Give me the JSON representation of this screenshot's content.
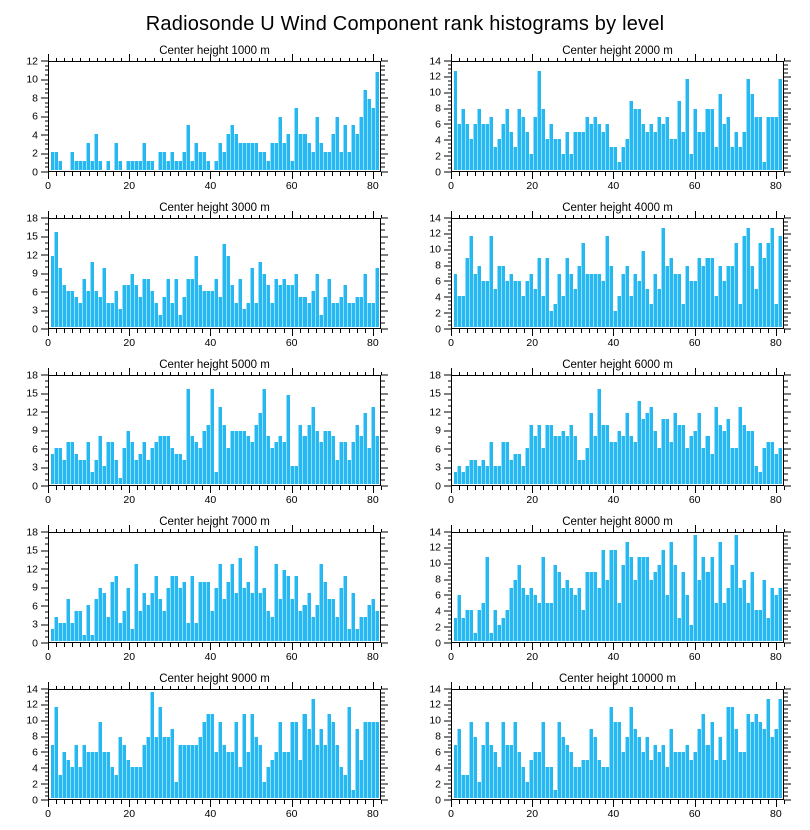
{
  "page": {
    "title": "Radiosonde U Wind Component rank histograms by level"
  },
  "colors": {
    "bar_fill": "#27b8f2",
    "bar_edge": "#92dffb",
    "axis": "#000000",
    "background": "#ffffff"
  },
  "chart_data": [
    {
      "type": "bar",
      "title": "Center height 1000 m",
      "xlabel": "",
      "ylabel": "",
      "xlim": [
        0,
        82
      ],
      "xticks": [
        0,
        20,
        40,
        60,
        80
      ],
      "ylim": [
        0,
        12
      ],
      "yticks": [
        0,
        2,
        4,
        6,
        8,
        10,
        12
      ],
      "grid": false,
      "legend": "none",
      "values": [
        2,
        2,
        1,
        0,
        0,
        2,
        1,
        1,
        1,
        3,
        1,
        4,
        1,
        0,
        1,
        0,
        3,
        1,
        0,
        1,
        1,
        1,
        1,
        3,
        1,
        1,
        0,
        2,
        2,
        1,
        2,
        1,
        1,
        2,
        5,
        1,
        3,
        2,
        2,
        1,
        0,
        1,
        3,
        2,
        4,
        5,
        4,
        3,
        3,
        3,
        3,
        3,
        2,
        2,
        1,
        3,
        3,
        6,
        3,
        4,
        1,
        7,
        4,
        4,
        3,
        2,
        6,
        3,
        2,
        2,
        4,
        6,
        2,
        5,
        2,
        5,
        4,
        6,
        9,
        8,
        7,
        11
      ]
    },
    {
      "type": "bar",
      "title": "Center height 2000 m",
      "xlabel": "",
      "ylabel": "",
      "xlim": [
        0,
        82
      ],
      "xticks": [
        0,
        20,
        40,
        60,
        80
      ],
      "ylim": [
        0,
        14
      ],
      "yticks": [
        0,
        2,
        4,
        6,
        8,
        10,
        12,
        14
      ],
      "grid": false,
      "legend": "none",
      "values": [
        13,
        6,
        8,
        6,
        4,
        6,
        8,
        6,
        6,
        7,
        3,
        4,
        6,
        8,
        5,
        3,
        8,
        7,
        5,
        2,
        7,
        13,
        8,
        4,
        6,
        4,
        4,
        2,
        5,
        2,
        5,
        5,
        5,
        7,
        6,
        7,
        6,
        5,
        6,
        3,
        3,
        1,
        3,
        4,
        9,
        8,
        8,
        6,
        5,
        6,
        5,
        7,
        6,
        7,
        4,
        4,
        9,
        5,
        12,
        2,
        8,
        5,
        5,
        8,
        8,
        3,
        10,
        6,
        7,
        3,
        5,
        3,
        5,
        12,
        10,
        7,
        7,
        1,
        7,
        7,
        7,
        12
      ]
    },
    {
      "type": "bar",
      "title": "Center height 3000 m",
      "xlabel": "",
      "ylabel": "",
      "xlim": [
        0,
        82
      ],
      "xticks": [
        0,
        20,
        40,
        60,
        80
      ],
      "ylim": [
        0,
        18
      ],
      "yticks": [
        0,
        3,
        6,
        9,
        12,
        15,
        18
      ],
      "grid": false,
      "legend": "none",
      "values": [
        12,
        16,
        10,
        7,
        6,
        6,
        5,
        4,
        8,
        6,
        11,
        6,
        5,
        10,
        4,
        4,
        6,
        3,
        7,
        7,
        9,
        7,
        5,
        8,
        8,
        6,
        4,
        2,
        5,
        8,
        4,
        8,
        2,
        5,
        8,
        8,
        12,
        7,
        6,
        6,
        6,
        8,
        5,
        14,
        12,
        7,
        4,
        8,
        3,
        4,
        10,
        4,
        11,
        9,
        7,
        4,
        8,
        7,
        8,
        7,
        7,
        9,
        5,
        5,
        4,
        6,
        9,
        2,
        5,
        8,
        4,
        4,
        5,
        7,
        4,
        4,
        5,
        5,
        9,
        4,
        4,
        10
      ]
    },
    {
      "type": "bar",
      "title": "Center height 4000 m",
      "xlabel": "",
      "ylabel": "",
      "xlim": [
        0,
        82
      ],
      "xticks": [
        0,
        20,
        40,
        60,
        80
      ],
      "ylim": [
        0,
        14
      ],
      "yticks": [
        0,
        2,
        4,
        6,
        8,
        10,
        12,
        14
      ],
      "grid": false,
      "legend": "none",
      "values": [
        7,
        4,
        4,
        9,
        12,
        7,
        8,
        6,
        6,
        12,
        5,
        8,
        8,
        6,
        7,
        6,
        6,
        4,
        6,
        7,
        5,
        9,
        4,
        9,
        2,
        3,
        7,
        4,
        9,
        7,
        5,
        8,
        11,
        7,
        7,
        7,
        7,
        6,
        12,
        8,
        2,
        4,
        7,
        8,
        4,
        7,
        6,
        10,
        5,
        3,
        7,
        5,
        13,
        8,
        9,
        7,
        7,
        3,
        8,
        6,
        6,
        9,
        8,
        9,
        9,
        4,
        8,
        6,
        8,
        8,
        11,
        3,
        12,
        13,
        8,
        5,
        11,
        9,
        11,
        13,
        3,
        12
      ]
    },
    {
      "type": "bar",
      "title": "Center height 5000 m",
      "xlabel": "",
      "ylabel": "",
      "xlim": [
        0,
        82
      ],
      "xticks": [
        0,
        20,
        40,
        60,
        80
      ],
      "ylim": [
        0,
        18
      ],
      "yticks": [
        0,
        3,
        6,
        9,
        12,
        15,
        18
      ],
      "grid": false,
      "legend": "none",
      "values": [
        5,
        6,
        6,
        4,
        7,
        7,
        5,
        4,
        4,
        7,
        2,
        4,
        8,
        3,
        7,
        7,
        4,
        1,
        6,
        9,
        7,
        4,
        5,
        7,
        4,
        6,
        7,
        8,
        8,
        8,
        6,
        5,
        5,
        4,
        16,
        8,
        7,
        6,
        9,
        10,
        16,
        2,
        13,
        10,
        6,
        9,
        9,
        9,
        9,
        8,
        7,
        10,
        12,
        16,
        8,
        6,
        7,
        8,
        7,
        15,
        3,
        3,
        10,
        8,
        10,
        13,
        9,
        7,
        9,
        9,
        8,
        4,
        7,
        7,
        4,
        7,
        10,
        8,
        12,
        6,
        13,
        8
      ]
    },
    {
      "type": "bar",
      "title": "Center height 6000 m",
      "xlabel": "",
      "ylabel": "",
      "xlim": [
        0,
        82
      ],
      "xticks": [
        0,
        20,
        40,
        60,
        80
      ],
      "ylim": [
        0,
        18
      ],
      "yticks": [
        0,
        3,
        6,
        9,
        12,
        15,
        18
      ],
      "grid": false,
      "legend": "none",
      "values": [
        2,
        3,
        2,
        3,
        4,
        4,
        3,
        4,
        3,
        7,
        3,
        3,
        7,
        7,
        4,
        5,
        5,
        3,
        6,
        10,
        8,
        10,
        6,
        10,
        10,
        8,
        8,
        9,
        8,
        10,
        8,
        4,
        4,
        6,
        12,
        8,
        16,
        10,
        10,
        7,
        7,
        9,
        8,
        12,
        8,
        7,
        14,
        11,
        12,
        13,
        9,
        6,
        11,
        11,
        7,
        12,
        10,
        10,
        6,
        8,
        9,
        12,
        6,
        8,
        5,
        13,
        10,
        9,
        11,
        6,
        6,
        13,
        10,
        9,
        9,
        3,
        2,
        6,
        7,
        7,
        5,
        6
      ]
    },
    {
      "type": "bar",
      "title": "Center height 7000 m",
      "xlabel": "",
      "ylabel": "",
      "xlim": [
        0,
        82
      ],
      "xticks": [
        0,
        20,
        40,
        60,
        80
      ],
      "ylim": [
        0,
        18
      ],
      "yticks": [
        0,
        3,
        6,
        9,
        12,
        15,
        18
      ],
      "grid": false,
      "legend": "none",
      "values": [
        2,
        4,
        3,
        3,
        7,
        3,
        5,
        5,
        1,
        6,
        1,
        7,
        9,
        8,
        4,
        10,
        11,
        3,
        5,
        9,
        2,
        13,
        5,
        8,
        6,
        8,
        11,
        7,
        5,
        9,
        11,
        11,
        9,
        10,
        3,
        11,
        3,
        10,
        10,
        10,
        5,
        9,
        13,
        7,
        10,
        13,
        8,
        14,
        9,
        10,
        8,
        16,
        8,
        9,
        5,
        4,
        13,
        7,
        12,
        11,
        7,
        11,
        5,
        6,
        8,
        4,
        6,
        13,
        10,
        7,
        7,
        4,
        9,
        11,
        2,
        8,
        2,
        4,
        4,
        6,
        7,
        5
      ]
    },
    {
      "type": "bar",
      "title": "Center height 8000 m",
      "xlabel": "",
      "ylabel": "",
      "xlim": [
        0,
        82
      ],
      "xticks": [
        0,
        20,
        40,
        60,
        80
      ],
      "ylim": [
        0,
        14
      ],
      "yticks": [
        0,
        2,
        4,
        6,
        8,
        10,
        12,
        14
      ],
      "grid": false,
      "legend": "none",
      "values": [
        3,
        6,
        3,
        4,
        4,
        1,
        4,
        5,
        11,
        1,
        4,
        2,
        3,
        4,
        7,
        8,
        10,
        7,
        6,
        7,
        6,
        5,
        11,
        5,
        5,
        10,
        9,
        7,
        8,
        7,
        6,
        7,
        4,
        9,
        9,
        9,
        7,
        12,
        8,
        12,
        12,
        5,
        10,
        13,
        11,
        8,
        11,
        11,
        11,
        8,
        9,
        10,
        12,
        6,
        13,
        10,
        3,
        9,
        6,
        2,
        14,
        8,
        11,
        9,
        11,
        5,
        13,
        5,
        7,
        10,
        14,
        7,
        8,
        5,
        9,
        4,
        4,
        8,
        3,
        7,
        6,
        7
      ]
    },
    {
      "type": "bar",
      "title": "Center height 9000 m",
      "xlabel": "",
      "ylabel": "",
      "xlim": [
        0,
        82
      ],
      "xticks": [
        0,
        20,
        40,
        60,
        80
      ],
      "ylim": [
        0,
        14
      ],
      "yticks": [
        0,
        2,
        4,
        6,
        8,
        10,
        12,
        14
      ],
      "grid": false,
      "legend": "none",
      "values": [
        7,
        12,
        3,
        6,
        5,
        4,
        7,
        4,
        7,
        6,
        6,
        6,
        10,
        6,
        6,
        4,
        3,
        8,
        7,
        5,
        4,
        4,
        4,
        7,
        8,
        14,
        8,
        12,
        8,
        8,
        9,
        2,
        7,
        7,
        7,
        7,
        7,
        8,
        10,
        11,
        11,
        6,
        10,
        7,
        6,
        6,
        10,
        4,
        11,
        6,
        11,
        8,
        7,
        2,
        4,
        5,
        6,
        10,
        6,
        6,
        10,
        10,
        5,
        11,
        9,
        13,
        7,
        9,
        7,
        11,
        10,
        7,
        4,
        3,
        12,
        1,
        9,
        5,
        10,
        10,
        10,
        10
      ]
    },
    {
      "type": "bar",
      "title": "Center height 10000 m",
      "xlabel": "",
      "ylabel": "",
      "xlim": [
        0,
        82
      ],
      "xticks": [
        0,
        20,
        40,
        60,
        80
      ],
      "ylim": [
        0,
        14
      ],
      "yticks": [
        0,
        2,
        4,
        6,
        8,
        10,
        12,
        14
      ],
      "grid": false,
      "legend": "none",
      "values": [
        7,
        9,
        3,
        3,
        10,
        8,
        2,
        7,
        10,
        7,
        6,
        4,
        10,
        7,
        7,
        10,
        6,
        4,
        2,
        5,
        6,
        6,
        10,
        4,
        4,
        1,
        10,
        8,
        7,
        6,
        4,
        4,
        5,
        5,
        9,
        8,
        5,
        4,
        4,
        12,
        10,
        10,
        6,
        8,
        12,
        9,
        8,
        6,
        8,
        5,
        7,
        6,
        7,
        4,
        9,
        6,
        6,
        6,
        7,
        5,
        6,
        9,
        11,
        7,
        10,
        5,
        8,
        5,
        12,
        12,
        9,
        6,
        6,
        11,
        10,
        11,
        10,
        9,
        13,
        8,
        9,
        13
      ]
    }
  ]
}
